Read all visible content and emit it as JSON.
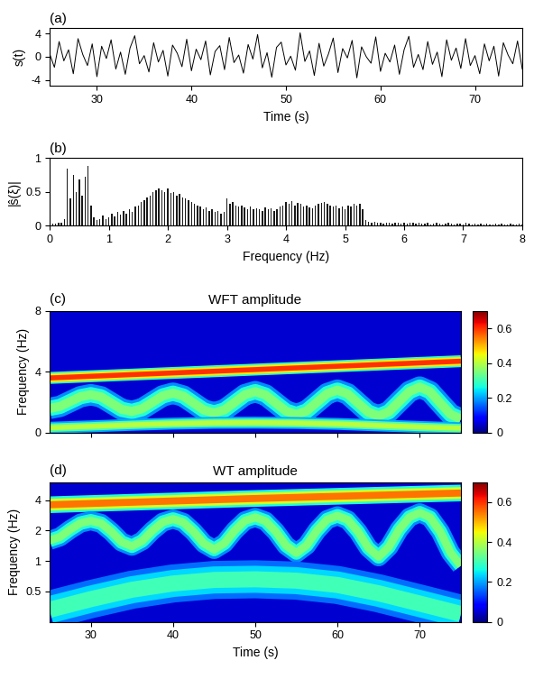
{
  "chart_data": [
    {
      "type": "line",
      "panel_label": "(a)",
      "x_label": "Time (s)",
      "y_label": "s(t)",
      "color": "#000000",
      "xlim": [
        25,
        75
      ],
      "xticks": [
        30,
        40,
        50,
        60,
        70
      ],
      "ylim": [
        -5,
        5
      ],
      "yticks": [
        -4,
        0,
        4
      ],
      "x": [
        25,
        25.5,
        26,
        26.5,
        27,
        27.5,
        28,
        28.5,
        29,
        29.5,
        30,
        30.5,
        31,
        31.5,
        32,
        32.5,
        33,
        33.5,
        34,
        34.5,
        35,
        35.5,
        36,
        36.5,
        37,
        37.5,
        38,
        38.5,
        39,
        39.5,
        40,
        40.5,
        41,
        41.5,
        42,
        42.5,
        43,
        43.5,
        44,
        44.5,
        45,
        45.5,
        46,
        46.5,
        47,
        47.5,
        48,
        48.5,
        49,
        49.5,
        50,
        50.5,
        51,
        51.5,
        52,
        52.5,
        53,
        53.5,
        54,
        54.5,
        55,
        55.5,
        56,
        56.5,
        57,
        57.5,
        58,
        58.5,
        59,
        59.5,
        60,
        60.5,
        61,
        61.5,
        62,
        62.5,
        63,
        63.5,
        64,
        64.5,
        65,
        65.5,
        66,
        66.5,
        67,
        67.5,
        68,
        68.5,
        69,
        69.5,
        70,
        70.5,
        71,
        71.5,
        72,
        72.5,
        73,
        73.5,
        74,
        74.5,
        75
      ],
      "values": [
        0.5,
        -1.8,
        2.6,
        -0.7,
        1.2,
        -2.9,
        3.1,
        0.4,
        -1.5,
        2.2,
        -3.4,
        1.8,
        -0.3,
        2.9,
        -2.1,
        0.8,
        -3.0,
        1.5,
        3.6,
        -1.2,
        0.2,
        -2.6,
        2.4,
        -0.9,
        1.1,
        -3.3,
        2.0,
        0.6,
        -1.7,
        3.0,
        -2.4,
        1.3,
        -0.5,
        2.7,
        -3.1,
        0.9,
        1.9,
        -2.2,
        3.3,
        -1.0,
        0.3,
        -2.8,
        2.1,
        -0.4,
        3.8,
        -1.9,
        0.7,
        -3.5,
        1.6,
        2.5,
        -1.4,
        0.1,
        -2.3,
        4.1,
        -0.8,
        1.0,
        -3.2,
        2.3,
        -1.6,
        0.5,
        3.2,
        -2.7,
        1.4,
        -0.2,
        2.8,
        -3.6,
        1.7,
        0.0,
        -1.1,
        3.4,
        -2.5,
        0.6,
        -0.9,
        2.0,
        -3.0,
        1.2,
        3.5,
        -1.8,
        0.4,
        -2.2,
        2.6,
        -1.3,
        0.8,
        -3.4,
        2.9,
        -0.6,
        1.5,
        -2.0,
        3.1,
        -1.5,
        0.2,
        -2.9,
        2.2,
        -0.7,
        1.8,
        -3.3,
        2.4,
        0.3,
        -1.2,
        2.7,
        -2.1
      ]
    },
    {
      "type": "bar",
      "panel_label": "(b)",
      "x_label": "Frequency (Hz)",
      "y_label": "|ŝ(ξ)|",
      "color": "#1a1a1a",
      "xlim": [
        0,
        8
      ],
      "xticks": [
        0,
        1,
        2,
        3,
        4,
        5,
        6,
        7,
        8
      ],
      "ylim": [
        0,
        1
      ],
      "yticks": [
        0,
        0.5,
        1
      ],
      "x": [
        0,
        0.05,
        0.1,
        0.15,
        0.2,
        0.25,
        0.3,
        0.35,
        0.4,
        0.45,
        0.5,
        0.55,
        0.6,
        0.65,
        0.7,
        0.75,
        0.8,
        0.85,
        0.9,
        0.95,
        1,
        1.05,
        1.1,
        1.15,
        1.2,
        1.25,
        1.3,
        1.35,
        1.4,
        1.45,
        1.5,
        1.55,
        1.6,
        1.65,
        1.7,
        1.75,
        1.8,
        1.85,
        1.9,
        1.95,
        2,
        2.05,
        2.1,
        2.15,
        2.2,
        2.25,
        2.3,
        2.35,
        2.4,
        2.45,
        2.5,
        2.55,
        2.6,
        2.65,
        2.7,
        2.75,
        2.8,
        2.85,
        2.9,
        2.95,
        3,
        3.05,
        3.1,
        3.15,
        3.2,
        3.25,
        3.3,
        3.35,
        3.4,
        3.45,
        3.5,
        3.55,
        3.6,
        3.65,
        3.7,
        3.75,
        3.8,
        3.85,
        3.9,
        3.95,
        4,
        4.05,
        4.1,
        4.15,
        4.2,
        4.25,
        4.3,
        4.35,
        4.4,
        4.45,
        4.5,
        4.55,
        4.6,
        4.65,
        4.7,
        4.75,
        4.8,
        4.85,
        4.9,
        4.95,
        5,
        5.05,
        5.1,
        5.15,
        5.2,
        5.25,
        5.3,
        5.35,
        5.4,
        5.45,
        5.5,
        5.55,
        5.6,
        5.65,
        5.7,
        5.75,
        5.8,
        5.85,
        5.9,
        5.95,
        6,
        6.05,
        6.1,
        6.15,
        6.2,
        6.25,
        6.3,
        6.35,
        6.4,
        6.45,
        6.5,
        6.55,
        6.6,
        6.65,
        6.7,
        6.75,
        6.8,
        6.85,
        6.9,
        6.95,
        7,
        7.05,
        7.1,
        7.15,
        7.2,
        7.25,
        7.3,
        7.35,
        7.4,
        7.45,
        7.5,
        7.55,
        7.6,
        7.65,
        7.7,
        7.75,
        7.8,
        7.85,
        7.9,
        7.95,
        8
      ],
      "values": [
        0.02,
        0.03,
        0.03,
        0.04,
        0.05,
        0.1,
        0.85,
        0.4,
        0.75,
        0.5,
        0.68,
        0.45,
        0.72,
        0.88,
        0.3,
        0.12,
        0.08,
        0.1,
        0.15,
        0.1,
        0.12,
        0.18,
        0.14,
        0.2,
        0.16,
        0.22,
        0.18,
        0.25,
        0.2,
        0.28,
        0.3,
        0.35,
        0.38,
        0.42,
        0.45,
        0.5,
        0.52,
        0.55,
        0.53,
        0.5,
        0.55,
        0.48,
        0.5,
        0.45,
        0.47,
        0.42,
        0.4,
        0.38,
        0.35,
        0.33,
        0.3,
        0.28,
        0.25,
        0.27,
        0.22,
        0.25,
        0.2,
        0.22,
        0.18,
        0.2,
        0.4,
        0.32,
        0.35,
        0.3,
        0.28,
        0.3,
        0.27,
        0.25,
        0.28,
        0.24,
        0.26,
        0.25,
        0.22,
        0.27,
        0.24,
        0.26,
        0.22,
        0.25,
        0.28,
        0.3,
        0.35,
        0.33,
        0.36,
        0.3,
        0.34,
        0.32,
        0.28,
        0.3,
        0.27,
        0.26,
        0.3,
        0.32,
        0.34,
        0.35,
        0.33,
        0.3,
        0.28,
        0.3,
        0.26,
        0.28,
        0.25,
        0.3,
        0.28,
        0.32,
        0.3,
        0.33,
        0.25,
        0.08,
        0.06,
        0.05,
        0.06,
        0.04,
        0.05,
        0.03,
        0.05,
        0.04,
        0.03,
        0.04,
        0.05,
        0.03,
        0.04,
        0.03,
        0.05,
        0.04,
        0.03,
        0.04,
        0.03,
        0.03,
        0.04,
        0.02,
        0.03,
        0.04,
        0.03,
        0.02,
        0.03,
        0.04,
        0.03,
        0.02,
        0.03,
        0.03,
        0.02,
        0.04,
        0.03,
        0.02,
        0.03,
        0.02,
        0.03,
        0.02,
        0.03,
        0.02,
        0.02,
        0.03,
        0.02,
        0.03,
        0.02,
        0.02,
        0.03,
        0.02,
        0.02,
        0.03,
        0.02
      ]
    },
    {
      "type": "heatmap",
      "panel_label": "(c)",
      "title": "WFT amplitude",
      "y_label": "Frequency (Hz)",
      "xlim": [
        25,
        75
      ],
      "xticks": [
        30,
        40,
        50,
        60,
        70
      ],
      "ylim": [
        0,
        8
      ],
      "yticks": [
        0,
        4,
        8
      ],
      "tick_labels": "y",
      "background_amplitude": 0.05,
      "colorbar_lim": [
        0,
        0.7
      ],
      "colorbar_ticks": [
        0,
        0.2,
        0.4,
        0.6
      ],
      "ridges": [
        {
          "x": [
            25,
            50,
            75
          ],
          "y": [
            3.6,
            4.15,
            4.7
          ],
          "amplitude": 0.6
        },
        {
          "x": [
            25,
            26.25,
            27.5,
            28.75,
            30,
            31.25,
            32.5,
            33.75,
            35,
            36.25,
            37.5,
            38.75,
            40,
            41.25,
            42.5,
            43.75,
            45,
            46.25,
            47.5,
            48.75,
            50,
            51.25,
            52.5,
            53.75,
            55,
            56.25,
            57.5,
            58.75,
            60,
            61.25,
            62.5,
            63.75,
            65,
            66.25,
            67.5,
            68.75,
            70,
            71.25,
            72.5,
            73.75,
            75
          ],
          "y": [
            1.6,
            1.73,
            2.05,
            2.37,
            2.5,
            2.36,
            1.95,
            1.54,
            1.4,
            1.58,
            2.0,
            2.42,
            2.6,
            2.41,
            1.95,
            1.49,
            1.3,
            1.5,
            2.0,
            2.5,
            2.7,
            2.48,
            1.95,
            1.42,
            1.2,
            1.43,
            2.0,
            2.57,
            2.8,
            2.55,
            1.95,
            1.35,
            1.1,
            1.38,
            2.05,
            2.71,
            3.0,
            2.7,
            1.95,
            1.21,
            0.9
          ],
          "amplitude": 0.35
        },
        {
          "x": [
            25,
            30,
            35,
            40,
            45,
            50,
            55,
            60,
            65,
            70,
            75
          ],
          "y": [
            0.33,
            0.42,
            0.52,
            0.6,
            0.65,
            0.66,
            0.64,
            0.58,
            0.48,
            0.38,
            0.3
          ],
          "amplitude": 0.4
        }
      ]
    },
    {
      "type": "heatmap",
      "panel_label": "(d)",
      "title": "WT amplitude",
      "x_label": "Time (s)",
      "y_label": "Frequency (Hz)",
      "log": "y",
      "xlim": [
        25,
        75
      ],
      "xticks": [
        30,
        40,
        50,
        60,
        70
      ],
      "ylim": [
        0.25,
        6
      ],
      "yticks": [
        0.5,
        1,
        2,
        4
      ],
      "background_amplitude": 0.05,
      "colorbar_lim": [
        0,
        0.7
      ],
      "colorbar_ticks": [
        0,
        0.2,
        0.4,
        0.6
      ],
      "ridges": [
        {
          "x": [
            25,
            50,
            75
          ],
          "y": [
            3.6,
            4.15,
            4.7
          ],
          "amplitude": 0.55
        },
        {
          "x": [
            25,
            26.25,
            27.5,
            28.75,
            30,
            31.25,
            32.5,
            33.75,
            35,
            36.25,
            37.5,
            38.75,
            40,
            41.25,
            42.5,
            43.75,
            45,
            46.25,
            47.5,
            48.75,
            50,
            51.25,
            52.5,
            53.75,
            55,
            56.25,
            57.5,
            58.75,
            60,
            61.25,
            62.5,
            63.75,
            65,
            66.25,
            67.5,
            68.75,
            70,
            71.25,
            72.5,
            73.75,
            75
          ],
          "y": [
            1.6,
            1.73,
            2.05,
            2.37,
            2.5,
            2.36,
            1.95,
            1.54,
            1.4,
            1.58,
            2.0,
            2.42,
            2.6,
            2.41,
            1.95,
            1.49,
            1.3,
            1.5,
            2.0,
            2.5,
            2.7,
            2.48,
            1.95,
            1.42,
            1.2,
            1.43,
            2.0,
            2.57,
            2.8,
            2.55,
            1.95,
            1.35,
            1.1,
            1.38,
            2.05,
            2.71,
            3.0,
            2.7,
            1.95,
            1.21,
            0.9
          ],
          "amplitude": 0.35
        },
        {
          "x": [
            25,
            30,
            35,
            40,
            45,
            50,
            55,
            60,
            65,
            70,
            75
          ],
          "y": [
            0.33,
            0.42,
            0.52,
            0.6,
            0.65,
            0.66,
            0.64,
            0.58,
            0.48,
            0.38,
            0.3
          ],
          "amplitude": 0.3
        }
      ]
    }
  ]
}
